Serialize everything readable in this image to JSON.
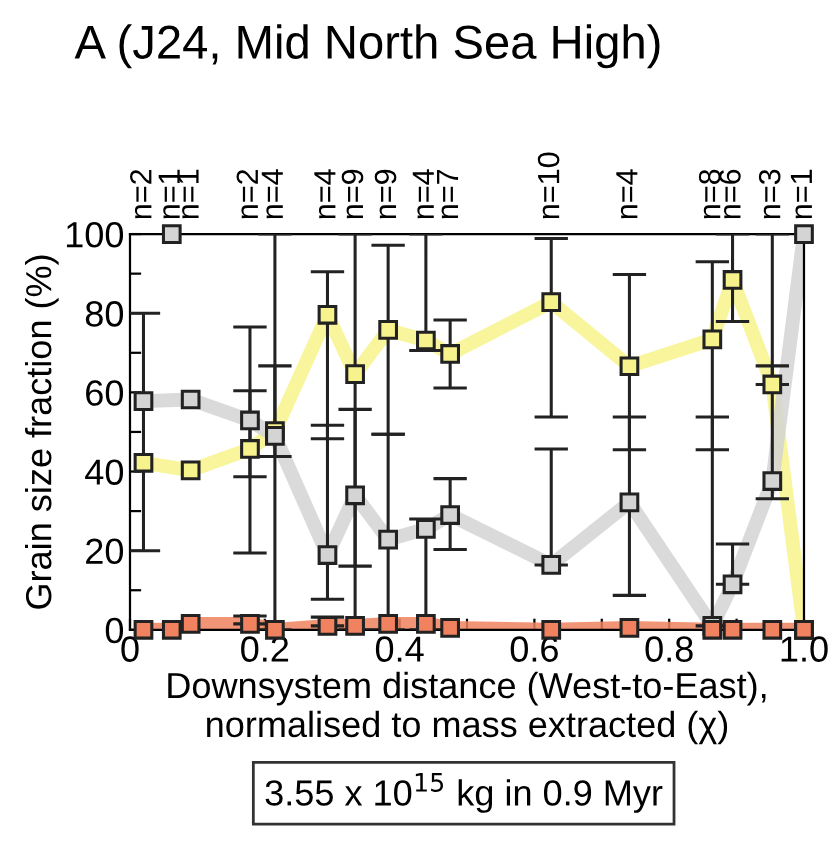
{
  "chart_data": {
    "type": "line",
    "title": "A (J24, Mid North Sea High)",
    "xlabel": "Downsystem distance (West-to-East),\nnormalised to mass extracted (χ)",
    "ylabel": "Grain size fraction (%)",
    "x": [
      0.02,
      0.062,
      0.09,
      0.178,
      0.215,
      0.293,
      0.334,
      0.383,
      0.439,
      0.475,
      0.625,
      0.741,
      0.864,
      0.894,
      0.953,
      1.0
    ],
    "series": [
      {
        "color": "#f7f38c",
        "values": [
          42.2,
          null,
          40.3,
          45.7,
          50.2,
          79.6,
          64.6,
          75.8,
          73.1,
          69.7,
          82.8,
          66.6,
          73.4,
          88.4,
          62,
          0
        ],
        "errors": [
          null,
          null,
          null,
          [
            38.7,
            60.4
          ],
          [
            0,
            100
          ],
          [
            48.3,
            90.5
          ],
          [
            0,
            100
          ],
          [
            49.4,
            97.2
          ],
          [
            70.6,
            100
          ],
          [
            61.1,
            78.3
          ],
          [
            53.8,
            98.9
          ],
          [
            45.5,
            89.8
          ],
          [
            45.5,
            93
          ],
          [
            77.9,
            100
          ],
          [
            62,
            66.7
          ],
          null
        ]
      },
      {
        "color": "#d4d4d4",
        "values": [
          57.8,
          null,
          58.2,
          52.9,
          49,
          18.9,
          34,
          22.8,
          25.5,
          29,
          16.4,
          32.2,
          1,
          11.5,
          37.6,
          100
        ],
        "errors": [
          [
            20,
            80
          ],
          null,
          null,
          [
            19.4,
            76.5
          ],
          [
            43.8,
            66.7
          ],
          [
            7.7,
            51.7
          ],
          [
            16.1,
            55.7
          ],
          [
            0,
            49.4
          ],
          [
            0,
            28
          ],
          [
            20.3,
            38.2
          ],
          [
            16.4,
            45.7
          ],
          [
            8.7,
            53.8
          ],
          [
            1,
            53.8
          ],
          [
            11.5,
            21.7
          ],
          [
            33.1,
            100
          ],
          null
        ]
      },
      {
        "color": "#f0825f",
        "values": [
          0,
          0,
          1.5,
          1.5,
          0,
          1,
          1,
          1.5,
          1.5,
          0.5,
          0,
          0.5,
          0,
          0,
          0,
          0
        ],
        "errors": [
          null,
          null,
          null,
          [
            1.5,
            3.5
          ],
          null,
          [
            1,
            3.2
          ],
          null,
          null,
          null,
          null,
          null,
          null,
          null,
          null,
          null,
          null
        ]
      },
      {
        "type": "scatter",
        "color": "#d4d4d4",
        "x": [
          0.062
        ],
        "values": [
          100
        ]
      }
    ],
    "xlim": [
      0,
      1.0
    ],
    "xticks": [
      0,
      {
        "value": 0.1,
        "label": null
      },
      0.2,
      {
        "value": 0.3,
        "label": null
      },
      0.4,
      {
        "value": 0.5,
        "label": null
      },
      0.6,
      {
        "value": 0.7,
        "label": null
      },
      0.8,
      {
        "value": 0.9,
        "label": null
      },
      {
        "value": 1.0,
        "label": "1.0"
      }
    ],
    "ylim": [
      0,
      100
    ],
    "yticks": [
      0,
      {
        "value": 10,
        "label": null
      },
      20,
      {
        "value": 30,
        "label": null
      },
      40,
      {
        "value": 50,
        "label": null
      },
      60,
      {
        "value": 70,
        "label": null
      },
      80,
      {
        "value": 90,
        "label": null
      },
      100
    ],
    "marker": "square",
    "grid": false,
    "legend": false,
    "annotations": [
      "n=2",
      "n=1",
      "n=1",
      "n=2",
      "n=4",
      "n=4",
      "n=9",
      "n=9",
      "n=4",
      "n=7",
      "n=10",
      "n=4",
      "n=8",
      "n=6",
      "n=3",
      "n=1",
      "3.55 x 10$^{15}$ kg in 0.9 Myr"
    ]
  }
}
